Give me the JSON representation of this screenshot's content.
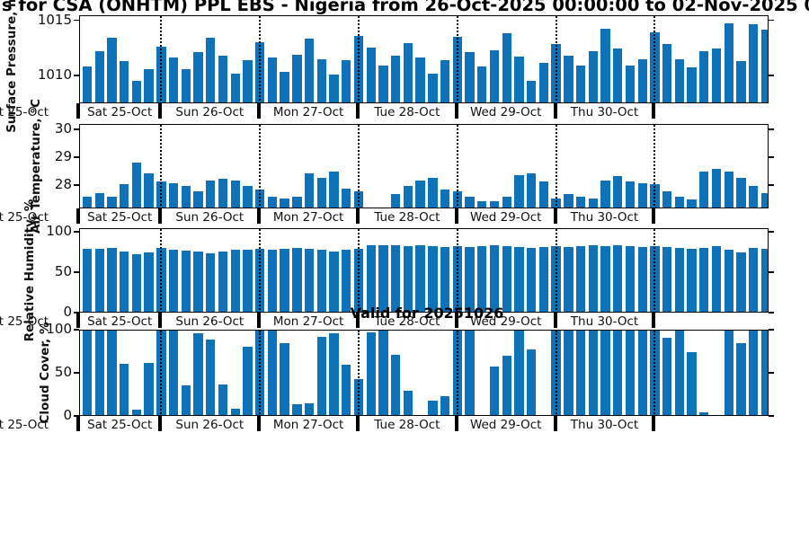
{
  "title": "s for CSA (ONHTM) PPL EBS  - Nigeria from 26-Oct-2025 00:00:00 to 02-Nov-2025 00:00:00",
  "annotation": "Valid for 20251026",
  "colors": {
    "bar": "#0d72b8",
    "axis": "#000000"
  },
  "x_axis": {
    "clipped_first_label": "Sat 25-Oct",
    "day_labels": [
      "Sat 25-Oct",
      "Sun 26-Oct",
      "Mon 27-Oct",
      "Tue 28-Oct",
      "Wed 29-Oct",
      "Thu 30-Oct"
    ]
  },
  "chart_data": [
    {
      "type": "bar",
      "ylabel": "Surface Pressure, mb",
      "yticks": [
        1010,
        1015
      ],
      "ylim": [
        1007.5,
        1015.45
      ],
      "x_step_hours": 3,
      "values": [
        1010.9,
        1012.3,
        1013.5,
        1011.4,
        1009.6,
        1010.7,
        1012.7,
        1011.7,
        1010.7,
        1012.2,
        1013.5,
        1011.9,
        1010.3,
        1011.5,
        1013.1,
        1011.7,
        1010.4,
        1012.0,
        1013.4,
        1011.6,
        1010.2,
        1011.5,
        1013.7,
        1012.6,
        1011.0,
        1011.9,
        1013.0,
        1011.7,
        1010.3,
        1011.5,
        1013.6,
        1012.2,
        1010.9,
        1012.4,
        1013.9,
        1011.8,
        1009.6,
        1011.2,
        1012.9,
        1011.9,
        1011.0,
        1012.3,
        1014.3,
        1012.5,
        1011.0,
        1011.6,
        1014.0,
        1012.9,
        1011.6,
        1010.8,
        1012.3,
        1012.5,
        1014.8,
        1011.4,
        1014.7,
        1014.2
      ]
    },
    {
      "type": "bar",
      "ylabel": "Air Temperature, °C",
      "yticks": [
        28,
        29,
        30
      ],
      "ylim": [
        27.15,
        30.2
      ],
      "x_step_hours": 3,
      "values": [
        27.6,
        27.75,
        27.6,
        28.05,
        28.85,
        28.45,
        28.15,
        28.1,
        28.0,
        27.8,
        28.2,
        28.25,
        28.2,
        28.0,
        27.85,
        27.6,
        27.55,
        27.6,
        28.45,
        28.3,
        28.5,
        27.9,
        27.8,
        27.2,
        27.2,
        27.7,
        28.0,
        28.2,
        28.3,
        27.85,
        27.8,
        27.6,
        27.45,
        27.45,
        27.6,
        28.4,
        28.45,
        28.15,
        27.55,
        27.7,
        27.6,
        27.55,
        28.2,
        28.35,
        28.15,
        28.1,
        28.05,
        27.8,
        27.6,
        27.5,
        28.5,
        28.6,
        28.5,
        28.3,
        28.0,
        27.75
      ]
    },
    {
      "type": "bar",
      "ylabel": "Relative Humidity, %",
      "yticks": [
        0,
        50,
        100
      ],
      "ylim": [
        0,
        104.5
      ],
      "x_step_hours": 3,
      "values": [
        80,
        80,
        81,
        77,
        73,
        76,
        81,
        79,
        78,
        77,
        75,
        77,
        79,
        79,
        80,
        79,
        80,
        81,
        80,
        79,
        77,
        79,
        80,
        84,
        85,
        84,
        83,
        84,
        83,
        82,
        83,
        82,
        83,
        84,
        83,
        82,
        81,
        82,
        83,
        82,
        83,
        84,
        83,
        84,
        83,
        82,
        83,
        82,
        81,
        80,
        81,
        83,
        79,
        76,
        81,
        80
      ]
    },
    {
      "type": "bar",
      "ylabel": "Cloud Cover, %",
      "yticks": [
        0,
        50,
        100
      ],
      "ylim": [
        0,
        100
      ],
      "x_step_hours": 3,
      "values": [
        100,
        100,
        100,
        61,
        8,
        63,
        100,
        100,
        36,
        97,
        90,
        38,
        9,
        81,
        100,
        100,
        85,
        15,
        16,
        93,
        97,
        60,
        44,
        98,
        100,
        72,
        30,
        0,
        19,
        24,
        100,
        100,
        0,
        58,
        71,
        100,
        78,
        0,
        100,
        100,
        100,
        100,
        100,
        100,
        100,
        100,
        100,
        92,
        100,
        75,
        5,
        0,
        100,
        85,
        100,
        100
      ]
    }
  ]
}
